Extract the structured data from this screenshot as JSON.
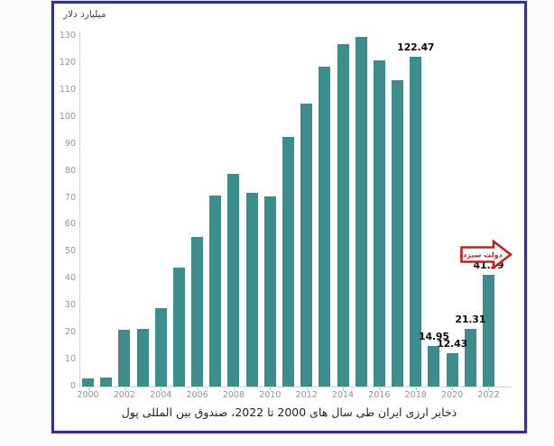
{
  "page": {
    "background": "#fcfcfd"
  },
  "chart_data": {
    "type": "bar",
    "unit_label": "میلیارد دلار",
    "caption": "ذخایر ارزی ایران طی سال های 2000 تا 2022، صندوق بین المللی پول",
    "years": [
      "2000",
      "2001",
      "2002",
      "2003",
      "2004",
      "2005",
      "2006",
      "2007",
      "2008",
      "2009",
      "2010",
      "2011",
      "2012",
      "2013",
      "2014",
      "2015",
      "2016",
      "2017",
      "2018",
      "2019",
      "2020",
      "2021",
      "2022"
    ],
    "values": [
      3,
      3.5,
      21,
      21.5,
      29,
      44,
      55.5,
      71,
      79,
      72,
      70.5,
      92.5,
      105,
      118.5,
      127,
      129.5,
      121,
      113.5,
      122.47,
      14.95,
      12.43,
      21.31,
      41.39
    ],
    "bar_labels": [
      "",
      "",
      "",
      "",
      "",
      "",
      "",
      "",
      "",
      "",
      "",
      "",
      "",
      "",
      "",
      "",
      "",
      "",
      "122.47",
      "14.95",
      "12.43",
      "21.31",
      "41.39"
    ],
    "xtick_labels": [
      "2000",
      "2002",
      "2004",
      "2006",
      "2008",
      "2010",
      "2012",
      "2014",
      "2016",
      "2018",
      "2020",
      "2022"
    ],
    "yticks": [
      0,
      10,
      20,
      30,
      40,
      50,
      60,
      70,
      80,
      90,
      100,
      110,
      120,
      130
    ],
    "ylim": [
      0,
      130
    ],
    "grid": false,
    "legend": "none",
    "annotation": {
      "text": "دولت سیزدهم",
      "color": "#c32222"
    },
    "colors": {
      "bar": "#3f8c8c",
      "frame_border": "#31319a",
      "axis": "#d2d2da",
      "tick_label": "#8e939e",
      "data_label": "#0d0d0d",
      "caption": "#1e1e2e",
      "unit_label": "#3d3d5c"
    }
  }
}
